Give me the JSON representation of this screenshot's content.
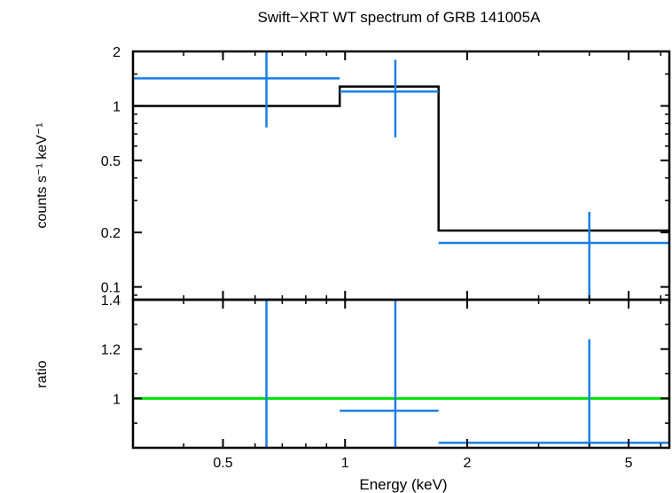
{
  "title": "Swift−XRT WT spectrum of GRB 141005A",
  "colors": {
    "data": "#1a7fe6",
    "model": "#000000",
    "ratio_line": "#00e000",
    "axes": "#000000"
  },
  "chart_data": [
    {
      "type": "scatter",
      "panel": "spectrum",
      "title": "Swift−XRT WT spectrum of GRB 141005A",
      "ylabel": "counts s⁻¹ keV⁻¹",
      "xscale": "log",
      "yscale": "log",
      "xlim": [
        0.3,
        6.3
      ],
      "ylim": [
        0.085,
        2.0
      ],
      "yticks": [
        {
          "value": 2,
          "label": "2"
        },
        {
          "value": 1,
          "label": "1"
        },
        {
          "value": 0.5,
          "label": "0.5"
        },
        {
          "value": 0.2,
          "label": "0.2"
        },
        {
          "value": 0.1,
          "label": "0.1"
        }
      ],
      "series": [
        {
          "kind": "data",
          "points": [
            {
              "xlo": 0.3,
              "xhi": 0.97,
              "x": 0.64,
              "y": 1.42,
              "ylo": 0.76,
              "yhi": 2.0
            },
            {
              "xlo": 0.97,
              "xhi": 1.7,
              "x": 1.33,
              "y": 1.2,
              "ylo": 0.67,
              "yhi": 1.8
            },
            {
              "xlo": 1.7,
              "xhi": 6.3,
              "x": 4.0,
              "y": 0.175,
              "ylo": 0.085,
              "yhi": 0.26
            }
          ]
        },
        {
          "kind": "model",
          "steps": [
            {
              "xlo": 0.3,
              "xhi": 0.97,
              "y": 1.0
            },
            {
              "xlo": 0.97,
              "xhi": 1.7,
              "y": 1.28
            },
            {
              "xlo": 1.7,
              "xhi": 6.3,
              "y": 0.205
            }
          ]
        }
      ]
    },
    {
      "type": "scatter",
      "panel": "ratio",
      "xlabel": "Energy (keV)",
      "ylabel": "ratio",
      "xscale": "log",
      "xlim": [
        0.3,
        6.3
      ],
      "ylim": [
        0.8,
        1.4
      ],
      "xticks": [
        {
          "value": 0.5,
          "label": "0.5"
        },
        {
          "value": 1,
          "label": "1"
        },
        {
          "value": 2,
          "label": "2"
        },
        {
          "value": 5,
          "label": "5"
        }
      ],
      "yticks": [
        {
          "value": 1.4,
          "label": "1.4"
        },
        {
          "value": 1.2,
          "label": "1.2"
        },
        {
          "value": 1,
          "label": "1"
        }
      ],
      "reference_line": 1.0,
      "series": [
        {
          "kind": "data",
          "points": [
            {
              "xlo": 0.3,
              "xhi": 0.97,
              "x": 0.64,
              "y": 1.4,
              "ylo": 0.8,
              "yhi": 1.4
            },
            {
              "xlo": 0.97,
              "xhi": 1.7,
              "x": 1.33,
              "y": 0.95,
              "ylo": 0.8,
              "yhi": 1.4
            },
            {
              "xlo": 1.7,
              "xhi": 6.3,
              "x": 4.0,
              "y": 0.82,
              "ylo": 0.8,
              "yhi": 1.24
            }
          ]
        }
      ]
    }
  ]
}
